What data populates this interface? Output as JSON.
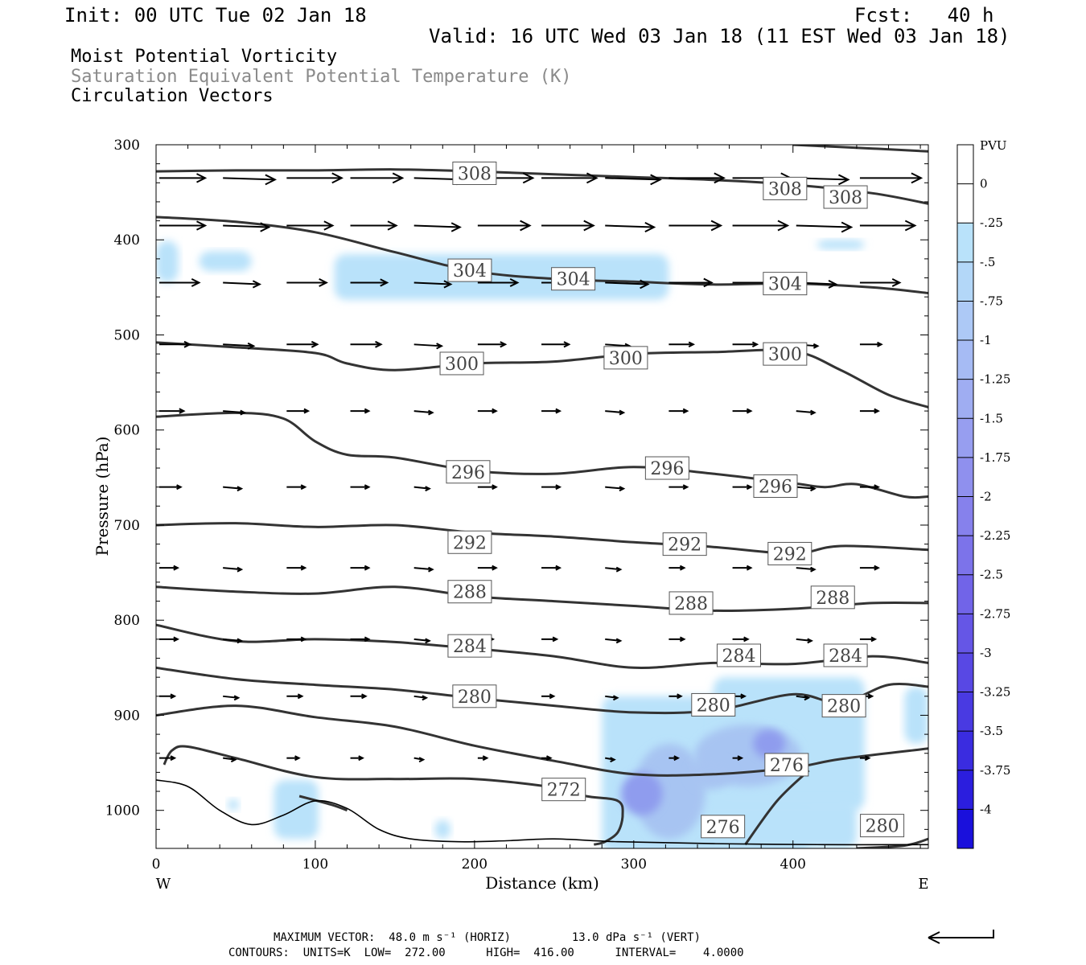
{
  "header": {
    "init": "Init: 00 UTC Tue 02 Jan 18",
    "fcst": "Fcst:   40 h",
    "valid": "Valid: 16 UTC Wed 03 Jan 18 (11 EST Wed 03 Jan 18)"
  },
  "fields": {
    "line1": "Moist Potential Vorticity",
    "line2": "Saturation Equivalent Potential Temperature (K)",
    "line3": "Circulation Vectors",
    "line2_color": "#8a8a8a"
  },
  "footer": {
    "max_vector": "MAXIMUM VECTOR:  48.0 m s⁻¹ (HORIZ)         13.0 dPa s⁻¹ (VERT)",
    "contours": "CONTOURS:  UNITS=K  LOW=  272.00      HIGH=  416.00      INTERVAL=    4.0000"
  },
  "chart_data": {
    "type": "contour",
    "xlabel": "Distance (km)",
    "ylabel": "Pressure (hPa)",
    "xlim": [
      0,
      485
    ],
    "ylim": [
      1040,
      300
    ],
    "x_ticks": [
      0,
      100,
      200,
      300,
      400
    ],
    "y_ticks": [
      300,
      400,
      500,
      600,
      700,
      800,
      900,
      1000
    ],
    "x_ticks_labels": [
      "0",
      "100",
      "200",
      "300",
      "400"
    ],
    "y_ticks_labels": [
      "300",
      "400",
      "500",
      "600",
      "700",
      "800",
      "900",
      "1000"
    ],
    "west_label": "W",
    "east_label": "E",
    "colorbar": {
      "unit": "PVU",
      "levels": [
        "0",
        "-.25",
        "-.5",
        "-.75",
        "-1",
        "-1.25",
        "-1.5",
        "-1.75",
        "-2",
        "-2.25",
        "-2.5",
        "-2.75",
        "-3",
        "-3.25",
        "-3.5",
        "-3.75",
        "-4"
      ],
      "colors": [
        "#ffffff",
        "#ffffff",
        "#b9e2fa",
        "#b3d7f8",
        "#adc9f6",
        "#a6bbf4",
        "#9fadf2",
        "#979ef0",
        "#8f90ee",
        "#8681ec",
        "#7c73ea",
        "#7164e8",
        "#6556e6",
        "#5848e4",
        "#493ae2",
        "#3a2ce0",
        "#2b1ede",
        "#1a10dc"
      ]
    },
    "contour_color": "#333333",
    "shade_colors": [
      "#b9e2fa",
      "#a7c4f2",
      "#8f9cee"
    ],
    "contours": [
      {
        "label": "308",
        "points": [
          [
            0,
            328
          ],
          [
            50,
            327
          ],
          [
            100,
            327
          ],
          [
            150,
            326
          ],
          [
            200,
            328
          ],
          [
            250,
            331
          ],
          [
            300,
            334
          ],
          [
            350,
            337
          ],
          [
            400,
            342
          ],
          [
            450,
            351
          ],
          [
            485,
            362
          ]
        ]
      },
      {
        "label": "304",
        "points": [
          [
            0,
            376
          ],
          [
            50,
            381
          ],
          [
            100,
            392
          ],
          [
            150,
            413
          ],
          [
            200,
            433
          ],
          [
            250,
            441
          ],
          [
            300,
            444
          ],
          [
            350,
            447
          ],
          [
            400,
            446
          ],
          [
            450,
            450
          ],
          [
            485,
            456
          ]
        ]
      },
      {
        "label": "300",
        "points": [
          [
            0,
            508
          ],
          [
            50,
            513
          ],
          [
            100,
            519
          ],
          [
            120,
            530
          ],
          [
            150,
            537
          ],
          [
            200,
            530
          ],
          [
            250,
            528
          ],
          [
            300,
            520
          ],
          [
            350,
            518
          ],
          [
            400,
            517
          ],
          [
            430,
            537
          ],
          [
            460,
            563
          ],
          [
            485,
            576
          ]
        ]
      },
      {
        "label": "296",
        "points": [
          [
            0,
            586
          ],
          [
            50,
            582
          ],
          [
            80,
            588
          ],
          [
            100,
            612
          ],
          [
            120,
            626
          ],
          [
            150,
            629
          ],
          [
            200,
            643
          ],
          [
            250,
            646
          ],
          [
            300,
            639
          ],
          [
            350,
            646
          ],
          [
            400,
            656
          ],
          [
            420,
            660
          ],
          [
            440,
            657
          ],
          [
            470,
            670
          ],
          [
            485,
            670
          ]
        ]
      },
      {
        "label": "292",
        "points": [
          [
            0,
            700
          ],
          [
            50,
            698
          ],
          [
            100,
            702
          ],
          [
            150,
            700
          ],
          [
            200,
            708
          ],
          [
            250,
            712
          ],
          [
            300,
            718
          ],
          [
            350,
            723
          ],
          [
            400,
            730
          ],
          [
            430,
            722
          ],
          [
            485,
            726
          ]
        ]
      },
      {
        "label": "288",
        "points": [
          [
            0,
            765
          ],
          [
            50,
            770
          ],
          [
            100,
            772
          ],
          [
            150,
            765
          ],
          [
            200,
            775
          ],
          [
            250,
            780
          ],
          [
            300,
            785
          ],
          [
            350,
            790
          ],
          [
            400,
            788
          ],
          [
            450,
            782
          ],
          [
            485,
            782
          ]
        ]
      },
      {
        "label": "284",
        "points": [
          [
            0,
            805
          ],
          [
            50,
            822
          ],
          [
            100,
            820
          ],
          [
            150,
            823
          ],
          [
            200,
            830
          ],
          [
            250,
            838
          ],
          [
            300,
            850
          ],
          [
            350,
            845
          ],
          [
            400,
            846
          ],
          [
            450,
            838
          ],
          [
            485,
            845
          ]
        ]
      },
      {
        "label": "280",
        "points": [
          [
            0,
            850
          ],
          [
            50,
            862
          ],
          [
            100,
            868
          ],
          [
            150,
            873
          ],
          [
            200,
            882
          ],
          [
            250,
            890
          ],
          [
            300,
            897
          ],
          [
            350,
            895
          ],
          [
            400,
            878
          ],
          [
            430,
            887
          ],
          [
            460,
            868
          ],
          [
            485,
            870
          ]
        ]
      },
      {
        "label": "276",
        "points": [
          [
            0,
            900
          ],
          [
            50,
            890
          ],
          [
            100,
            902
          ],
          [
            150,
            912
          ],
          [
            200,
            932
          ],
          [
            250,
            948
          ],
          [
            300,
            962
          ],
          [
            350,
            962
          ],
          [
            400,
            955
          ],
          [
            430,
            946
          ],
          [
            485,
            935
          ]
        ]
      },
      {
        "label": "272",
        "points": [
          [
            5,
            952
          ],
          [
            10,
            937
          ],
          [
            20,
            933
          ],
          [
            50,
            945
          ],
          [
            100,
            965
          ],
          [
            150,
            967
          ],
          [
            200,
            967
          ],
          [
            250,
            976
          ],
          [
            270,
            985
          ],
          [
            290,
            990
          ],
          [
            293,
            1005
          ],
          [
            290,
            1023
          ],
          [
            282,
            1033
          ],
          [
            275,
            1036
          ]
        ]
      }
    ],
    "contour_labels": [
      {
        "text": "308",
        "x": 200,
        "p": 330
      },
      {
        "text": "308",
        "x": 395,
        "p": 346
      },
      {
        "text": "308",
        "x": 433,
        "p": 355
      },
      {
        "text": "304",
        "x": 197,
        "p": 432
      },
      {
        "text": "304",
        "x": 262,
        "p": 441
      },
      {
        "text": "304",
        "x": 395,
        "p": 446
      },
      {
        "text": "300",
        "x": 192,
        "p": 530
      },
      {
        "text": "300",
        "x": 295,
        "p": 524
      },
      {
        "text": "300",
        "x": 395,
        "p": 520
      },
      {
        "text": "296",
        "x": 196,
        "p": 644
      },
      {
        "text": "296",
        "x": 321,
        "p": 640
      },
      {
        "text": "296",
        "x": 389,
        "p": 659
      },
      {
        "text": "292",
        "x": 197,
        "p": 718
      },
      {
        "text": "292",
        "x": 332,
        "p": 720
      },
      {
        "text": "292",
        "x": 398,
        "p": 730
      },
      {
        "text": "288",
        "x": 197,
        "p": 770
      },
      {
        "text": "288",
        "x": 336,
        "p": 782
      },
      {
        "text": "288",
        "x": 425,
        "p": 776
      },
      {
        "text": "284",
        "x": 197,
        "p": 827
      },
      {
        "text": "284",
        "x": 366,
        "p": 837
      },
      {
        "text": "284",
        "x": 433,
        "p": 837
      },
      {
        "text": "280",
        "x": 200,
        "p": 880
      },
      {
        "text": "280",
        "x": 350,
        "p": 889
      },
      {
        "text": "280",
        "x": 432,
        "p": 890
      },
      {
        "text": "276",
        "x": 396,
        "p": 952
      },
      {
        "text": "272",
        "x": 256,
        "p": 978
      },
      {
        "text": "276",
        "x": 356,
        "p": 1017
      },
      {
        "text": "280",
        "x": 456,
        "p": 1016
      }
    ],
    "vector_rows": [
      {
        "p": 335,
        "lens": [
          30,
          34,
          36,
          34,
          34,
          36,
          36,
          36,
          36,
          38,
          34,
          40
        ]
      },
      {
        "p": 385,
        "lens": [
          30,
          30,
          30,
          30,
          30,
          34,
          34,
          32,
          34,
          36,
          36,
          36
        ]
      },
      {
        "p": 445,
        "lens": [
          26,
          24,
          26,
          24,
          24,
          26,
          26,
          28,
          28,
          28,
          26,
          26
        ]
      },
      {
        "p": 510,
        "lens": [
          20,
          20,
          20,
          20,
          18,
          18,
          18,
          16,
          16,
          16,
          14,
          14
        ]
      },
      {
        "p": 580,
        "lens": [
          16,
          14,
          14,
          12,
          12,
          12,
          12,
          12,
          12,
          12,
          12,
          12
        ]
      },
      {
        "p": 660,
        "lens": [
          14,
          12,
          12,
          12,
          10,
          12,
          12,
          12,
          12,
          12,
          12,
          12
        ]
      },
      {
        "p": 745,
        "lens": [
          12,
          12,
          12,
          12,
          12,
          12,
          12,
          10,
          10,
          12,
          12,
          12
        ]
      },
      {
        "p": 820,
        "lens": [
          12,
          12,
          12,
          12,
          10,
          10,
          10,
          10,
          10,
          10,
          10,
          10
        ]
      },
      {
        "p": 880,
        "lens": [
          10,
          10,
          10,
          10,
          8,
          8,
          8,
          8,
          8,
          8,
          8,
          8
        ]
      },
      {
        "p": 945,
        "lens": [
          10,
          8,
          8,
          8,
          6,
          6,
          6,
          6,
          6,
          6,
          6,
          6
        ]
      }
    ]
  }
}
